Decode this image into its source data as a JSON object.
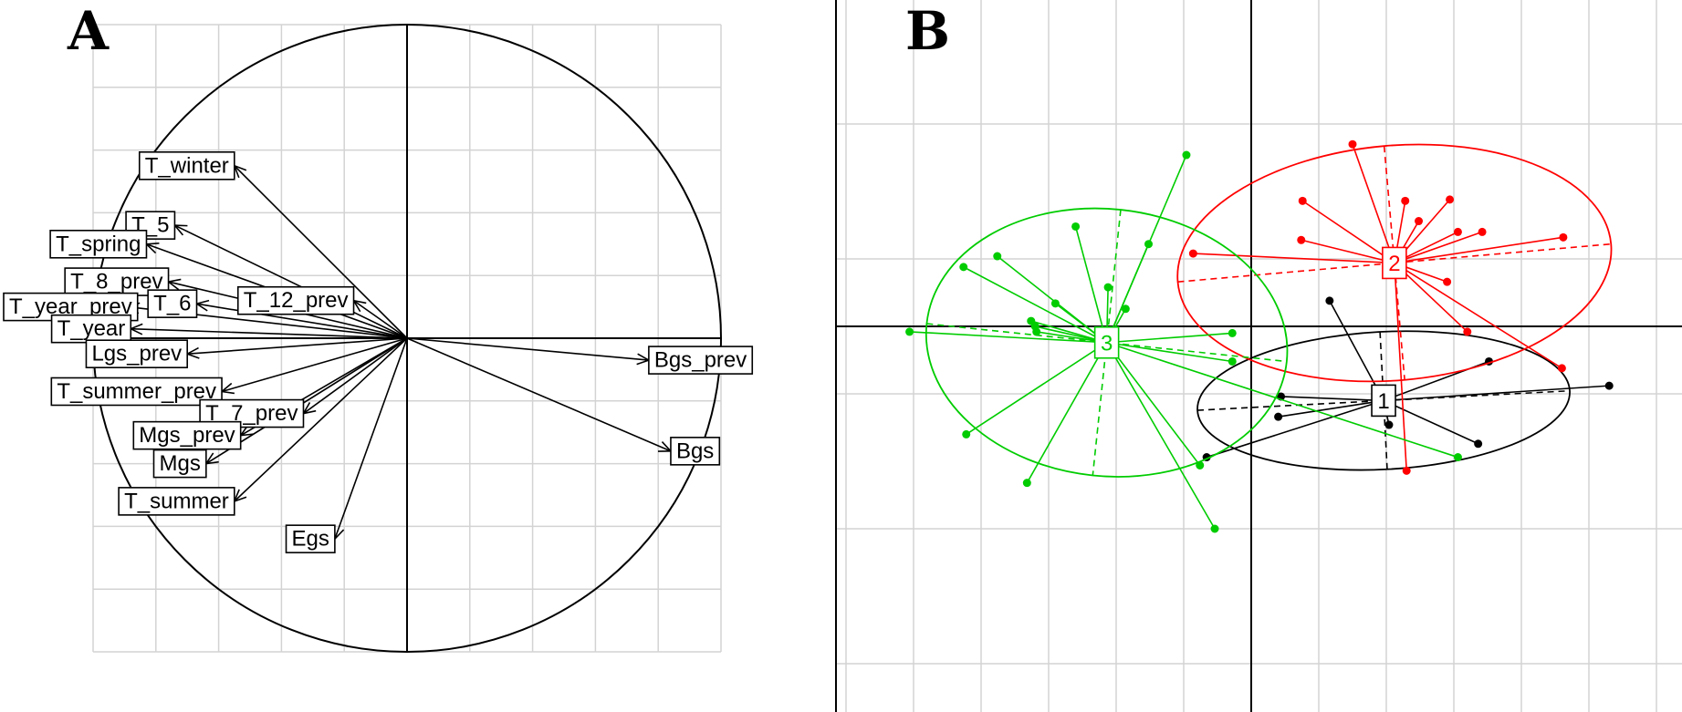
{
  "chart_data": [
    {
      "panel": "A",
      "type": "scatter",
      "subtype": "correlation-circle",
      "title": "",
      "xlabel": "",
      "ylabel": "",
      "xlim": [
        -1,
        1
      ],
      "ylim": [
        -1,
        1
      ],
      "grid": true,
      "grid_step": 0.2,
      "variables": [
        {
          "name": "T_winter",
          "x": -0.55,
          "y": 0.55
        },
        {
          "name": "T_5",
          "x": -0.74,
          "y": 0.36
        },
        {
          "name": "T_spring",
          "x": -0.83,
          "y": 0.3
        },
        {
          "name": "T_8_prev",
          "x": -0.76,
          "y": 0.18
        },
        {
          "name": "T_12_prev",
          "x": -0.17,
          "y": 0.12
        },
        {
          "name": "T_year_prev",
          "x": -0.89,
          "y": 0.1
        },
        {
          "name": "T_6",
          "x": -0.67,
          "y": 0.11
        },
        {
          "name": "T_year",
          "x": -0.88,
          "y": 0.03
        },
        {
          "name": "Lgs_prev",
          "x": -0.7,
          "y": -0.05
        },
        {
          "name": "T_summer_prev",
          "x": -0.59,
          "y": -0.17
        },
        {
          "name": "T_7_prev",
          "x": -0.33,
          "y": -0.24
        },
        {
          "name": "Mgs_prev",
          "x": -0.53,
          "y": -0.31
        },
        {
          "name": "Mgs",
          "x": -0.64,
          "y": -0.4
        },
        {
          "name": "T_summer",
          "x": -0.55,
          "y": -0.52
        },
        {
          "name": "Egs",
          "x": -0.23,
          "y": -0.64
        },
        {
          "name": "Bgs_prev",
          "x": 0.77,
          "y": -0.07
        },
        {
          "name": "Bgs",
          "x": 0.84,
          "y": -0.36
        }
      ]
    },
    {
      "panel": "B",
      "type": "scatter",
      "subtype": "cluster-ellipses",
      "title": "",
      "xlabel": "",
      "ylabel": "",
      "xlim": [
        -3.1,
        3.1
      ],
      "ylim": [
        -2.8,
        2.4
      ],
      "grid": true,
      "grid_step": 1,
      "clusters": [
        {
          "label": "1",
          "color": "#000000",
          "center": [
            0.98,
            -0.55
          ],
          "ellipse": {
            "rx": 1.38,
            "ry": 0.51,
            "angle": 3
          },
          "points": [
            [
              0.58,
              0.19
            ],
            [
              0.22,
              -0.52
            ],
            [
              0.2,
              -0.67
            ],
            [
              1.76,
              -0.26
            ],
            [
              1.68,
              -0.87
            ],
            [
              2.65,
              -0.44
            ],
            [
              1.02,
              -0.73
            ],
            [
              -0.33,
              -0.97
            ]
          ]
        },
        {
          "label": "2",
          "color": "#ff0000",
          "center": [
            1.06,
            0.47
          ],
          "ellipse": {
            "rx": 1.61,
            "ry": 0.87,
            "angle": 5
          },
          "points": [
            [
              0.75,
              1.35
            ],
            [
              1.14,
              0.93
            ],
            [
              1.71,
              0.7
            ],
            [
              1.47,
              0.94
            ],
            [
              1.24,
              0.78
            ],
            [
              1.53,
              0.7
            ],
            [
              2.31,
              0.66
            ],
            [
              0.38,
              0.93
            ],
            [
              -0.43,
              0.54
            ],
            [
              0.37,
              0.64
            ],
            [
              1.45,
              0.33
            ],
            [
              1.6,
              -0.04
            ],
            [
              2.3,
              -0.31
            ],
            [
              1.15,
              -1.07
            ]
          ]
        },
        {
          "label": "3",
          "color": "#00cc00",
          "center": [
            -1.07,
            -0.12
          ],
          "ellipse": {
            "rx": 1.34,
            "ry": 0.99,
            "angle": -6
          },
          "points": [
            [
              -0.48,
              1.27
            ],
            [
              -1.3,
              0.74
            ],
            [
              -0.76,
              0.61
            ],
            [
              -1.88,
              0.52
            ],
            [
              -2.13,
              0.44
            ],
            [
              -1.45,
              0.17
            ],
            [
              -1.06,
              0.29
            ],
            [
              -0.93,
              0.13
            ],
            [
              -1.6,
              0.0
            ],
            [
              -1.63,
              0.04
            ],
            [
              -1.59,
              -0.04
            ],
            [
              -2.53,
              -0.04
            ],
            [
              -0.14,
              -0.05
            ],
            [
              -0.14,
              -0.26
            ],
            [
              -2.11,
              -0.8
            ],
            [
              -1.66,
              -1.16
            ],
            [
              -0.38,
              -1.03
            ],
            [
              -0.27,
              -1.5
            ],
            [
              1.53,
              -0.97
            ]
          ]
        }
      ]
    }
  ]
}
